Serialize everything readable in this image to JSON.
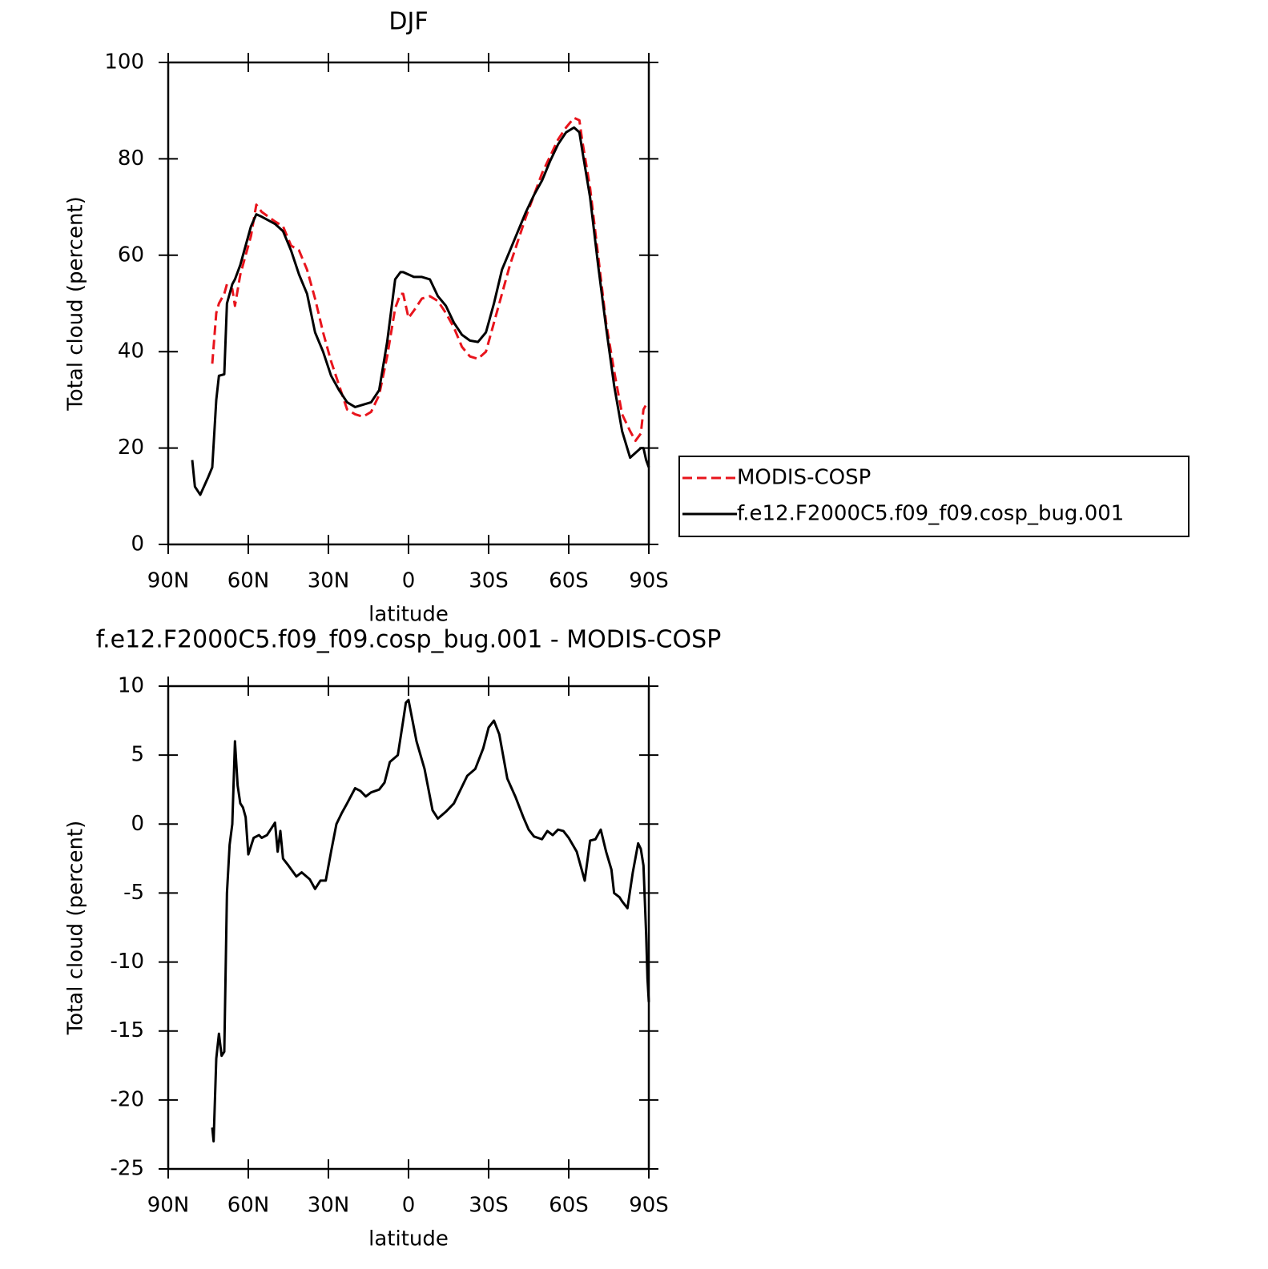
{
  "chart_data": [
    {
      "type": "line",
      "title": "DJF",
      "xlabel": "latitude",
      "ylabel": "Total cloud (percent)",
      "x": [
        81,
        80,
        78,
        75,
        73.5,
        72,
        71,
        69,
        68,
        66,
        65,
        63,
        62,
        59,
        57,
        55,
        50,
        47,
        44,
        41,
        38,
        35,
        32,
        29,
        26,
        23,
        20,
        17,
        14,
        11,
        8,
        5,
        3,
        2,
        0,
        -2,
        -5,
        -8,
        -11,
        -14,
        -17,
        -20,
        -23,
        -26,
        -29,
        -32,
        -35,
        -38,
        -41,
        -44,
        -47,
        -50,
        -53,
        -56,
        -59,
        -62,
        -64,
        -65,
        -68,
        -71,
        -74,
        -77,
        -80,
        -83,
        -85,
        -87,
        -88,
        -89,
        -90
      ],
      "series": [
        {
          "name": "MODIS-COSP",
          "color": "#e8141c",
          "dashed": true,
          "values": [
            null,
            null,
            null,
            null,
            37.5,
            48,
            50,
            52,
            54,
            53,
            49.5,
            56,
            58,
            64,
            70.5,
            69,
            67,
            66,
            62,
            61,
            57,
            51,
            44,
            38,
            33,
            28,
            27,
            26.5,
            27.5,
            31,
            39,
            49,
            52,
            52,
            47,
            48.5,
            51,
            51.5,
            50.5,
            48,
            45,
            41,
            39,
            38.5,
            40,
            46,
            52,
            58,
            63,
            68,
            72.5,
            77,
            80.5,
            84,
            86.5,
            88.5,
            88,
            84,
            74,
            60,
            46,
            36,
            27,
            23.5,
            21.5,
            23,
            28,
            29,
            29
          ]
        },
        {
          "name": "f.e12.F2000C5.f09_f09.cosp_bug.001",
          "color": "#000000",
          "dashed": false,
          "values": [
            17.5,
            12,
            10.3,
            14,
            16,
            30,
            35,
            35.3,
            50,
            54,
            55,
            58,
            60,
            66,
            68.5,
            68,
            66.5,
            65,
            61,
            56,
            52,
            44,
            40,
            35,
            32,
            29.5,
            28.5,
            29,
            29.5,
            32,
            42,
            55,
            56.5,
            56.5,
            56,
            55.5,
            55.5,
            55,
            51.5,
            49.5,
            46,
            43.5,
            42.3,
            42,
            44,
            50,
            57,
            61,
            65,
            69,
            72.5,
            75.5,
            79.5,
            83,
            85.5,
            86.5,
            85.5,
            82,
            72,
            58,
            45,
            33,
            23.5,
            18,
            19,
            20,
            20,
            17.5,
            16
          ]
        }
      ],
      "xlim": [
        90,
        -90
      ],
      "xticks": [
        {
          "value": 90,
          "label": "90N"
        },
        {
          "value": 60,
          "label": "60N"
        },
        {
          "value": 30,
          "label": "30N"
        },
        0,
        {
          "value": -30,
          "label": "30S"
        },
        {
          "value": -60,
          "label": "60S"
        },
        {
          "value": -90,
          "label": "90S"
        }
      ],
      "ylim": [
        0,
        100
      ],
      "yticks": [
        0,
        20,
        40,
        60,
        80,
        100
      ],
      "legend": "outside-right"
    },
    {
      "type": "line",
      "title": "f.e12.F2000C5.f09_f09.cosp_bug.001 - MODIS-COSP",
      "xlabel": "latitude",
      "ylabel": "Total cloud (percent)",
      "x": [
        73.5,
        73,
        72,
        71,
        70,
        69,
        68,
        67,
        66,
        65,
        64,
        63,
        62,
        61,
        60,
        58,
        56,
        55,
        53,
        50,
        49,
        48,
        47,
        45,
        42,
        40,
        37,
        35,
        33,
        31,
        29,
        27,
        25,
        23,
        20,
        18,
        16,
        14,
        11,
        9,
        7,
        4,
        2,
        1,
        0,
        -3,
        -6,
        -9,
        -11,
        -14,
        -17,
        -20,
        -22,
        -25,
        -28,
        -30,
        -32,
        -34,
        -37,
        -40,
        -43,
        -45,
        -47,
        -50,
        -52,
        -54,
        -56,
        -58,
        -60,
        -63,
        -66,
        -68,
        -70,
        -72,
        -74,
        -76,
        -77,
        -79,
        -80,
        -82,
        -84,
        -86,
        -87,
        -88,
        -89,
        -89.5,
        -90
      ],
      "values": [
        -22,
        -23,
        -17,
        -15.2,
        -16.8,
        -16.5,
        -5,
        -1.5,
        0,
        6,
        2.8,
        1.5,
        1.2,
        0.5,
        -2.2,
        -1,
        -0.8,
        -1,
        -0.8,
        0.1,
        -2,
        -0.5,
        -2.5,
        -3,
        -3.8,
        -3.5,
        -4,
        -4.7,
        -4.1,
        -4.1,
        -2,
        0,
        0.8,
        1.5,
        2.6,
        2.4,
        2,
        2.3,
        2.5,
        3,
        4.5,
        5,
        7.5,
        8.8,
        9,
        6,
        4,
        1,
        0.4,
        0.9,
        1.5,
        2.7,
        3.5,
        4,
        5.5,
        7,
        7.5,
        6.5,
        3.3,
        2,
        0.5,
        -0.4,
        -0.9,
        -1.1,
        -0.5,
        -0.8,
        -0.4,
        -0.5,
        -1,
        -2,
        -4.1,
        -1.2,
        -1.1,
        -0.4,
        -2,
        -3.3,
        -5,
        -5.3,
        -5.6,
        -6.1,
        -3.5,
        -1.4,
        -1.8,
        -3,
        -8,
        -11.2,
        -12.9
      ],
      "color": "#000000",
      "xlim": [
        90,
        -90
      ],
      "xticks": [
        {
          "value": 90,
          "label": "90N"
        },
        {
          "value": 60,
          "label": "60N"
        },
        {
          "value": 30,
          "label": "30N"
        },
        0,
        {
          "value": -30,
          "label": "30S"
        },
        {
          "value": -60,
          "label": "60S"
        },
        {
          "value": -90,
          "label": "90S"
        }
      ],
      "ylim": [
        -25,
        10
      ],
      "yticks": [
        -25,
        -20,
        -15,
        -10,
        -5,
        0,
        5,
        10
      ]
    }
  ]
}
